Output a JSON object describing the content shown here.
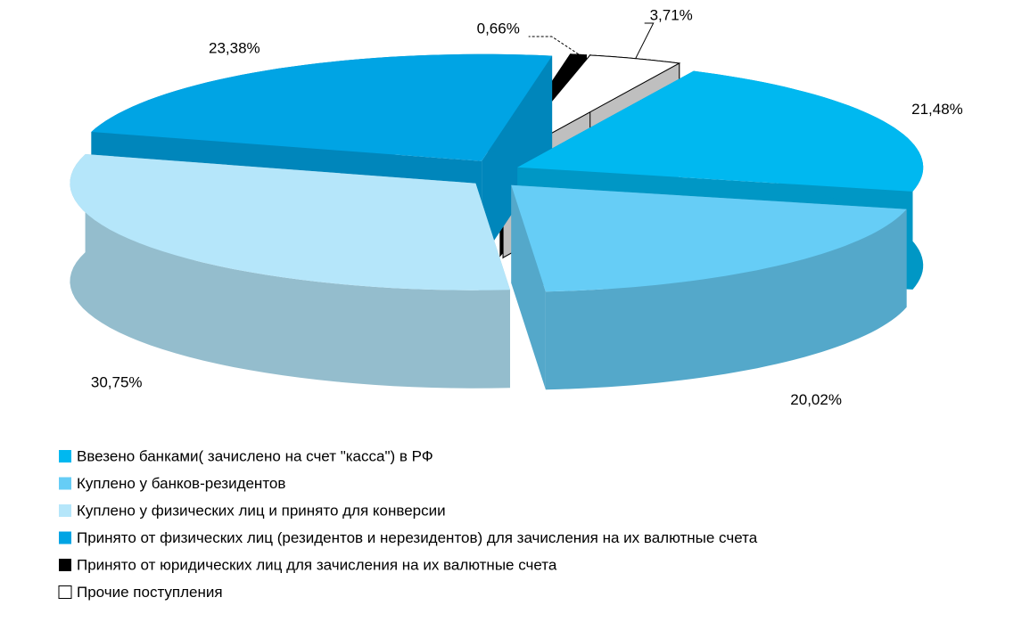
{
  "chart_data": {
    "type": "pie3d",
    "series": [
      {
        "name": "Ввезено банками( зачислено на счет \"касса\") в РФ",
        "color": "#00b8f0",
        "values": [
          21.48
        ],
        "value_labels": [
          "21,48%"
        ]
      },
      {
        "name": "Куплено у  банков-резидентов",
        "color": "#66cdf6",
        "values": [
          20.02
        ],
        "value_labels": [
          "20,02%"
        ]
      },
      {
        "name": "Куплено у физических лиц и принято для конверсии",
        "color": "#b5e6fa",
        "values": [
          30.75
        ],
        "value_labels": [
          "30,75%"
        ]
      },
      {
        "name": "Принято от физических лиц (резидентов и нерезидентов) для зачисления на их валютные счета",
        "color": "#00a4e4",
        "values": [
          23.38
        ],
        "value_labels": [
          "23,38%"
        ]
      },
      {
        "name": "Принято от юридических лиц для зачисления на их валютные счета",
        "color": "#000000",
        "values": [
          0.66
        ],
        "value_labels": [
          "0,66%"
        ]
      },
      {
        "name": "Прочие поступления",
        "color": "#ffffff",
        "values": [
          3.71
        ],
        "value_labels": [
          "3,71%"
        ]
      }
    ]
  }
}
